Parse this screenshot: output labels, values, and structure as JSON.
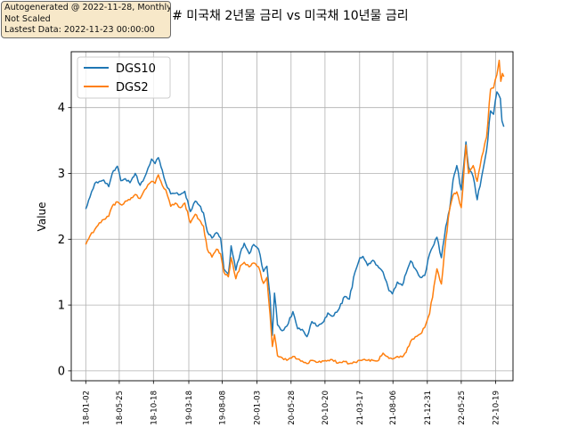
{
  "annotation": {
    "line1": "Autogenerated @ 2022-11-28, Monthly",
    "line2": "Not Scaled",
    "line3": "Lastest Data: 2022-11-23 00:00:00"
  },
  "colors": {
    "DGS10": "#1f77b4",
    "DGS2": "#ff7f0e",
    "grid": "#b0b0b0"
  },
  "chart_data": {
    "type": "line",
    "title": "## 미국채 2년물 금리 vs 미국채 10년물 금리",
    "xlabel": "",
    "ylabel": "Value",
    "ylim": [
      -0.15,
      4.85
    ],
    "yticks": [
      0,
      1,
      2,
      3,
      4
    ],
    "xlim": [
      "2017-11-01",
      "2023-01-01"
    ],
    "xticks": [
      "18-01-02",
      "18-05-25",
      "18-10-18",
      "19-03-18",
      "19-08-08",
      "20-01-03",
      "20-05-28",
      "20-10-20",
      "21-03-17",
      "21-08-06",
      "21-12-31",
      "22-05-25",
      "22-10-19"
    ],
    "grid": true,
    "legend": "upper left",
    "series": [
      {
        "name": "DGS10",
        "points": [
          [
            "2018-01-02",
            2.46
          ],
          [
            "2018-01-20",
            2.64
          ],
          [
            "2018-02-10",
            2.85
          ],
          [
            "2018-03-01",
            2.88
          ],
          [
            "2018-03-20",
            2.9
          ],
          [
            "2018-04-10",
            2.8
          ],
          [
            "2018-04-25",
            3.0
          ],
          [
            "2018-05-17",
            3.11
          ],
          [
            "2018-06-01",
            2.89
          ],
          [
            "2018-06-20",
            2.92
          ],
          [
            "2018-07-10",
            2.86
          ],
          [
            "2018-08-01",
            3.0
          ],
          [
            "2018-08-22",
            2.82
          ],
          [
            "2018-09-10",
            2.94
          ],
          [
            "2018-09-25",
            3.08
          ],
          [
            "2018-10-10",
            3.22
          ],
          [
            "2018-10-25",
            3.15
          ],
          [
            "2018-11-08",
            3.24
          ],
          [
            "2018-11-25",
            3.05
          ],
          [
            "2018-12-10",
            2.85
          ],
          [
            "2018-12-31",
            2.69
          ],
          [
            "2019-01-20",
            2.7
          ],
          [
            "2019-02-10",
            2.68
          ],
          [
            "2019-03-01",
            2.73
          ],
          [
            "2019-03-25",
            2.42
          ],
          [
            "2019-04-15",
            2.58
          ],
          [
            "2019-05-01",
            2.52
          ],
          [
            "2019-05-20",
            2.4
          ],
          [
            "2019-06-05",
            2.12
          ],
          [
            "2019-06-25",
            2.02
          ],
          [
            "2019-07-15",
            2.1
          ],
          [
            "2019-08-01",
            2.02
          ],
          [
            "2019-08-15",
            1.55
          ],
          [
            "2019-09-03",
            1.47
          ],
          [
            "2019-09-15",
            1.9
          ],
          [
            "2019-10-05",
            1.53
          ],
          [
            "2019-10-25",
            1.8
          ],
          [
            "2019-11-10",
            1.94
          ],
          [
            "2019-12-01",
            1.78
          ],
          [
            "2019-12-20",
            1.92
          ],
          [
            "2020-01-10",
            1.85
          ],
          [
            "2020-01-31",
            1.51
          ],
          [
            "2020-02-15",
            1.59
          ],
          [
            "2020-02-28",
            1.13
          ],
          [
            "2020-03-09",
            0.54
          ],
          [
            "2020-03-18",
            1.18
          ],
          [
            "2020-03-31",
            0.7
          ],
          [
            "2020-04-20",
            0.61
          ],
          [
            "2020-05-10",
            0.68
          ],
          [
            "2020-06-05",
            0.9
          ],
          [
            "2020-06-25",
            0.64
          ],
          [
            "2020-07-15",
            0.63
          ],
          [
            "2020-08-04",
            0.52
          ],
          [
            "2020-08-25",
            0.75
          ],
          [
            "2020-09-20",
            0.68
          ],
          [
            "2020-10-15",
            0.75
          ],
          [
            "2020-11-01",
            0.88
          ],
          [
            "2020-11-20",
            0.83
          ],
          [
            "2020-12-15",
            0.92
          ],
          [
            "2021-01-12",
            1.13
          ],
          [
            "2021-02-01",
            1.09
          ],
          [
            "2021-02-25",
            1.5
          ],
          [
            "2021-03-18",
            1.72
          ],
          [
            "2021-03-31",
            1.74
          ],
          [
            "2021-04-20",
            1.6
          ],
          [
            "2021-05-12",
            1.68
          ],
          [
            "2021-06-01",
            1.6
          ],
          [
            "2021-06-25",
            1.5
          ],
          [
            "2021-07-10",
            1.35
          ],
          [
            "2021-07-20",
            1.22
          ],
          [
            "2021-08-04",
            1.17
          ],
          [
            "2021-08-25",
            1.35
          ],
          [
            "2021-09-15",
            1.3
          ],
          [
            "2021-10-01",
            1.48
          ],
          [
            "2021-10-21",
            1.67
          ],
          [
            "2021-11-10",
            1.55
          ],
          [
            "2021-12-01",
            1.42
          ],
          [
            "2021-12-20",
            1.45
          ],
          [
            "2022-01-10",
            1.78
          ],
          [
            "2022-02-10",
            2.03
          ],
          [
            "2022-03-01",
            1.72
          ],
          [
            "2022-03-20",
            2.2
          ],
          [
            "2022-04-05",
            2.45
          ],
          [
            "2022-04-20",
            2.9
          ],
          [
            "2022-05-06",
            3.12
          ],
          [
            "2022-05-25",
            2.75
          ],
          [
            "2022-06-14",
            3.48
          ],
          [
            "2022-06-25",
            3.1
          ],
          [
            "2022-07-15",
            2.95
          ],
          [
            "2022-08-01",
            2.6
          ],
          [
            "2022-08-20",
            2.95
          ],
          [
            "2022-09-10",
            3.35
          ],
          [
            "2022-09-27",
            3.95
          ],
          [
            "2022-10-10",
            3.9
          ],
          [
            "2022-10-24",
            4.24
          ],
          [
            "2022-11-08",
            4.14
          ],
          [
            "2022-11-15",
            3.8
          ],
          [
            "2022-11-23",
            3.71
          ]
        ]
      },
      {
        "name": "DGS2",
        "points": [
          [
            "2018-01-02",
            1.92
          ],
          [
            "2018-01-20",
            2.05
          ],
          [
            "2018-02-10",
            2.15
          ],
          [
            "2018-03-01",
            2.25
          ],
          [
            "2018-03-20",
            2.3
          ],
          [
            "2018-04-10",
            2.35
          ],
          [
            "2018-04-25",
            2.5
          ],
          [
            "2018-05-17",
            2.57
          ],
          [
            "2018-06-05",
            2.52
          ],
          [
            "2018-06-20",
            2.58
          ],
          [
            "2018-07-10",
            2.6
          ],
          [
            "2018-08-01",
            2.68
          ],
          [
            "2018-08-22",
            2.62
          ],
          [
            "2018-09-10",
            2.75
          ],
          [
            "2018-09-25",
            2.83
          ],
          [
            "2018-10-10",
            2.88
          ],
          [
            "2018-10-25",
            2.85
          ],
          [
            "2018-11-08",
            2.98
          ],
          [
            "2018-11-25",
            2.82
          ],
          [
            "2018-12-10",
            2.75
          ],
          [
            "2018-12-31",
            2.5
          ],
          [
            "2019-01-20",
            2.55
          ],
          [
            "2019-02-10",
            2.48
          ],
          [
            "2019-03-01",
            2.55
          ],
          [
            "2019-03-25",
            2.25
          ],
          [
            "2019-04-15",
            2.38
          ],
          [
            "2019-05-01",
            2.3
          ],
          [
            "2019-05-20",
            2.2
          ],
          [
            "2019-06-05",
            1.85
          ],
          [
            "2019-06-25",
            1.73
          ],
          [
            "2019-07-15",
            1.85
          ],
          [
            "2019-08-01",
            1.78
          ],
          [
            "2019-08-15",
            1.5
          ],
          [
            "2019-09-03",
            1.43
          ],
          [
            "2019-09-15",
            1.72
          ],
          [
            "2019-10-05",
            1.4
          ],
          [
            "2019-10-25",
            1.6
          ],
          [
            "2019-11-10",
            1.65
          ],
          [
            "2019-12-01",
            1.58
          ],
          [
            "2019-12-20",
            1.64
          ],
          [
            "2020-01-10",
            1.58
          ],
          [
            "2020-01-31",
            1.33
          ],
          [
            "2020-02-15",
            1.42
          ],
          [
            "2020-02-28",
            0.86
          ],
          [
            "2020-03-09",
            0.37
          ],
          [
            "2020-03-18",
            0.55
          ],
          [
            "2020-03-31",
            0.23
          ],
          [
            "2020-04-20",
            0.2
          ],
          [
            "2020-05-10",
            0.16
          ],
          [
            "2020-06-05",
            0.22
          ],
          [
            "2020-06-25",
            0.18
          ],
          [
            "2020-07-15",
            0.15
          ],
          [
            "2020-08-04",
            0.11
          ],
          [
            "2020-08-25",
            0.16
          ],
          [
            "2020-09-20",
            0.13
          ],
          [
            "2020-10-15",
            0.15
          ],
          [
            "2020-11-01",
            0.16
          ],
          [
            "2020-11-20",
            0.17
          ],
          [
            "2020-12-15",
            0.12
          ],
          [
            "2021-01-12",
            0.14
          ],
          [
            "2021-02-01",
            0.11
          ],
          [
            "2021-02-25",
            0.13
          ],
          [
            "2021-03-18",
            0.16
          ],
          [
            "2021-03-31",
            0.17
          ],
          [
            "2021-04-20",
            0.16
          ],
          [
            "2021-05-12",
            0.16
          ],
          [
            "2021-06-01",
            0.15
          ],
          [
            "2021-06-25",
            0.27
          ],
          [
            "2021-07-10",
            0.22
          ],
          [
            "2021-07-20",
            0.19
          ],
          [
            "2021-08-04",
            0.18
          ],
          [
            "2021-08-25",
            0.22
          ],
          [
            "2021-09-15",
            0.21
          ],
          [
            "2021-10-01",
            0.28
          ],
          [
            "2021-10-21",
            0.45
          ],
          [
            "2021-11-10",
            0.52
          ],
          [
            "2021-12-01",
            0.56
          ],
          [
            "2021-12-20",
            0.66
          ],
          [
            "2022-01-10",
            0.87
          ],
          [
            "2022-02-10",
            1.55
          ],
          [
            "2022-03-01",
            1.32
          ],
          [
            "2022-03-20",
            2.0
          ],
          [
            "2022-04-05",
            2.45
          ],
          [
            "2022-04-20",
            2.67
          ],
          [
            "2022-05-06",
            2.72
          ],
          [
            "2022-05-25",
            2.48
          ],
          [
            "2022-06-14",
            3.43
          ],
          [
            "2022-06-25",
            3.0
          ],
          [
            "2022-07-15",
            3.12
          ],
          [
            "2022-08-01",
            2.88
          ],
          [
            "2022-08-20",
            3.25
          ],
          [
            "2022-09-10",
            3.55
          ],
          [
            "2022-09-27",
            4.28
          ],
          [
            "2022-10-10",
            4.3
          ],
          [
            "2022-10-24",
            4.5
          ],
          [
            "2022-11-03",
            4.72
          ],
          [
            "2022-11-10",
            4.4
          ],
          [
            "2022-11-17",
            4.52
          ],
          [
            "2022-11-23",
            4.47
          ]
        ]
      }
    ]
  }
}
